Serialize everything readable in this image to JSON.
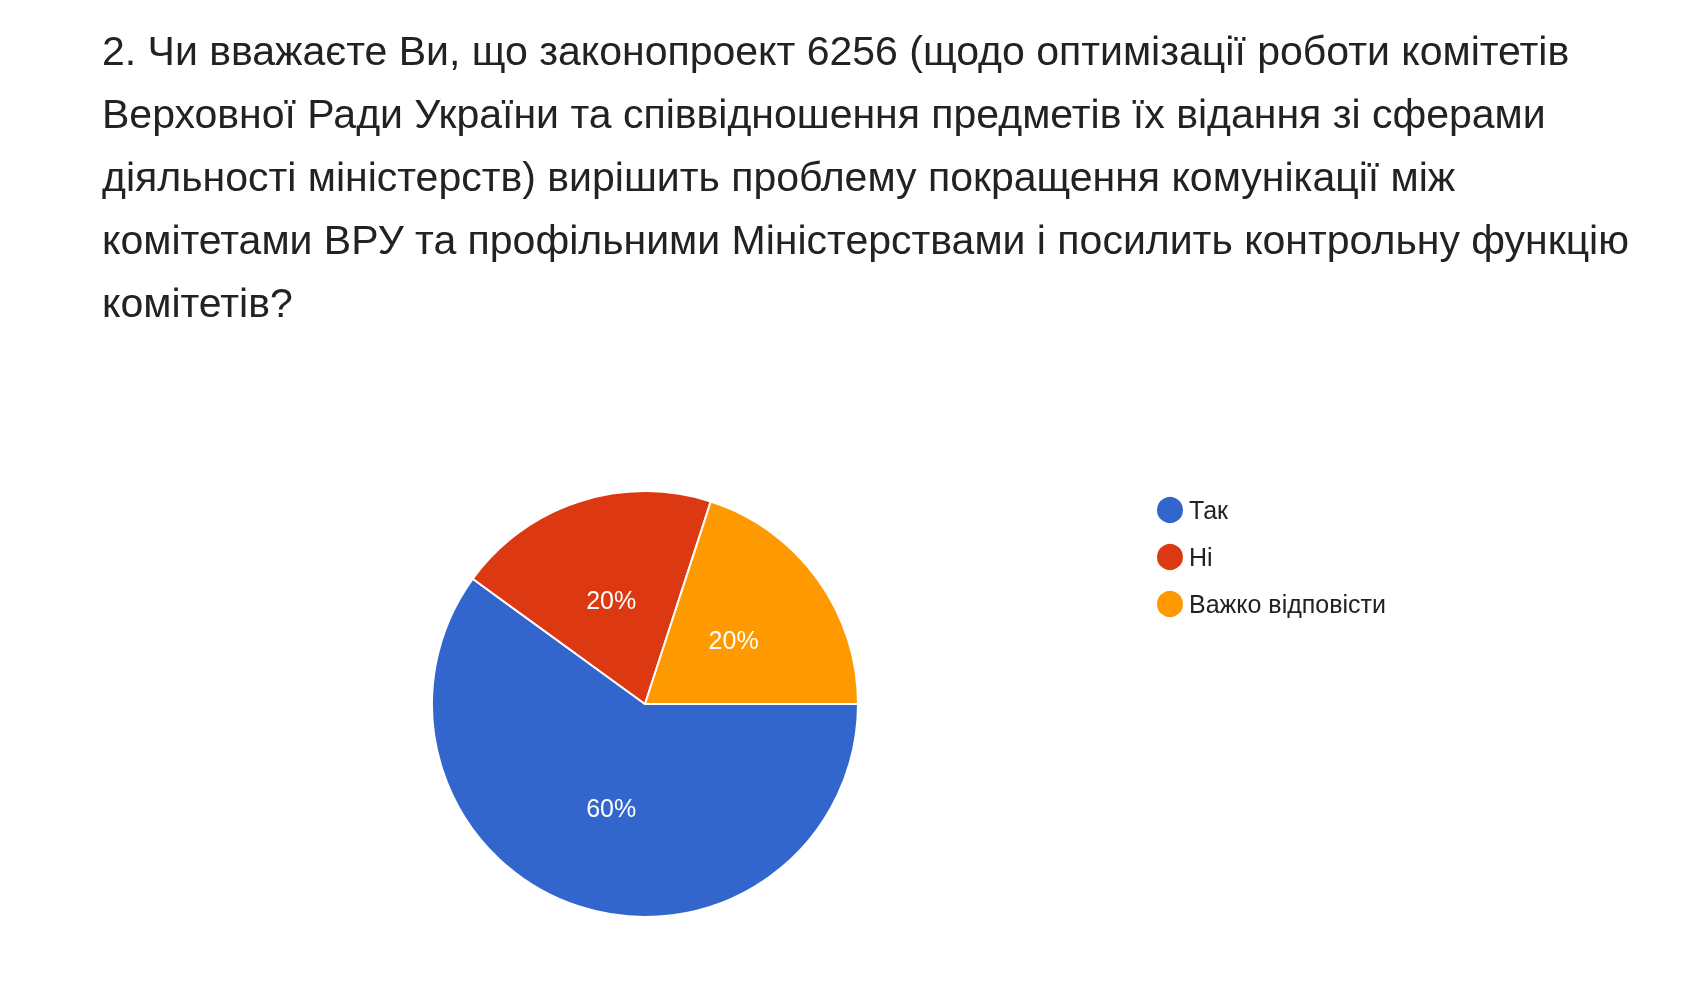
{
  "chart_data": {
    "type": "pie",
    "title": "2. Чи вважаєте Ви, що законопроект 6256 (щодо оптимізації роботи комітетів Верховної Ради України та співвідношення предметів їх відання зі сферами діяльності міністерств) вирішить проблему покращення комунікації між комітетами ВРУ та профільними Міністерствами і посилить контрольну функцію комітетів?",
    "categories": [
      "Так",
      "Ні",
      "Важко відповісти"
    ],
    "values": [
      60,
      20,
      20
    ],
    "colors": [
      "#3366cc",
      "#dc3912",
      "#ff9900"
    ],
    "legend": "right",
    "value_labels": [
      "60%",
      "20%",
      "20%"
    ]
  }
}
